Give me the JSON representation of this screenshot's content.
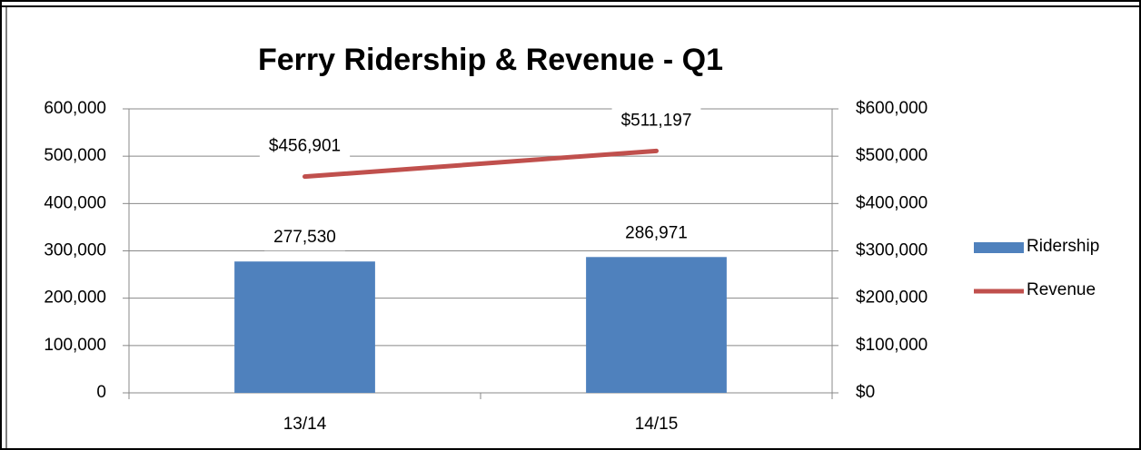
{
  "chart_data": {
    "type": "bar",
    "title": "Ferry Ridership & Revenue - Q1",
    "categories": [
      "13/14",
      "14/15"
    ],
    "series": [
      {
        "name": "Ridership",
        "type": "bar",
        "color": "#4f81bd",
        "values": [
          277530,
          286971
        ],
        "value_labels": [
          "277,530",
          "286,971"
        ]
      },
      {
        "name": "Revenue",
        "type": "line",
        "axis": "y2",
        "color": "#c0504d",
        "values": [
          456901,
          511197
        ],
        "value_labels": [
          "$456,901",
          "$511,197"
        ]
      }
    ],
    "ylim": [
      0,
      600000
    ],
    "yticks": [
      0,
      {
        "value": 100000,
        "label": "100,000"
      },
      {
        "value": 200000,
        "label": "200,000"
      },
      {
        "value": 300000,
        "label": "300,000"
      },
      {
        "value": 400000,
        "label": "400,000"
      },
      {
        "value": 500000,
        "label": "500,000"
      },
      {
        "value": 600000,
        "label": "600,000"
      }
    ],
    "y2lim": [
      0,
      600000
    ],
    "y2ticks": [
      {
        "value": 0,
        "label": "$0"
      },
      {
        "value": 100000,
        "label": "$100,000"
      },
      {
        "value": 200000,
        "label": "$200,000"
      },
      {
        "value": 300000,
        "label": "$300,000"
      },
      {
        "value": 400000,
        "label": "$400,000"
      },
      {
        "value": 500000,
        "label": "$500,000"
      },
      {
        "value": 600000,
        "label": "$600,000"
      }
    ],
    "grid": true,
    "legend": "right"
  }
}
